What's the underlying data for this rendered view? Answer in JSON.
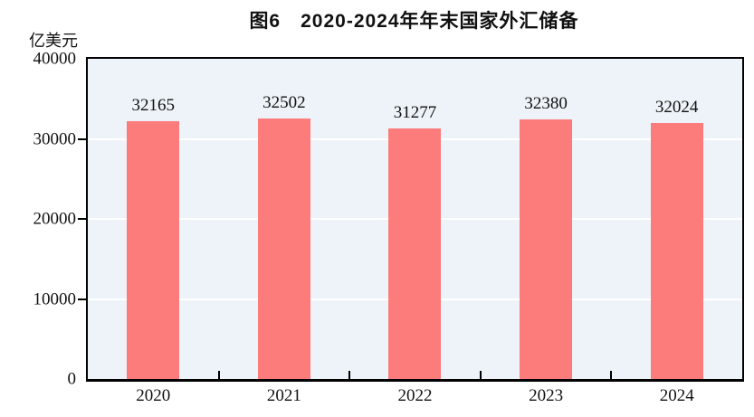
{
  "title": "图6　2020-2024年年末国家外汇储备",
  "unit_label": "亿美元",
  "colors": {
    "bar": "#FC7C7C",
    "plot_background": "#EDF3F8",
    "gridline": "#FFFFFF",
    "axis_border": "#000000",
    "text": "#111111"
  },
  "chart_data": {
    "type": "bar",
    "title": "图6　2020-2024年年末国家外汇储备",
    "ylabel": "亿美元",
    "xlabel": "",
    "categories": [
      "2020",
      "2021",
      "2022",
      "2023",
      "2024"
    ],
    "values": [
      32165,
      32502,
      31277,
      32380,
      32024
    ],
    "value_labels": [
      "32165",
      "32502",
      "31277",
      "32380",
      "32024"
    ],
    "ylim": [
      0,
      40000
    ],
    "yticks": [
      0,
      10000,
      20000,
      30000,
      40000
    ],
    "ytick_labels": [
      "0",
      "10000",
      "20000",
      "30000",
      "40000"
    ],
    "grid": "horizontal",
    "legend_position": "none"
  }
}
